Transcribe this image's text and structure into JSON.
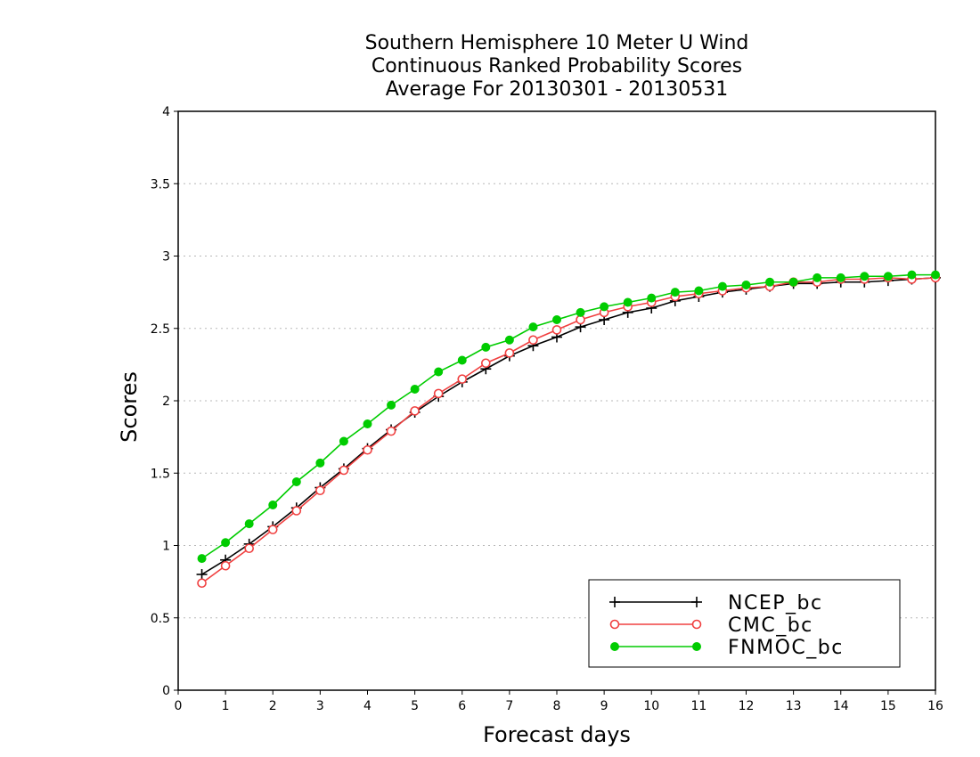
{
  "chart_data": {
    "type": "line",
    "title": [
      "Southern Hemisphere 10 Meter U Wind",
      "Continuous Ranked Probability Scores",
      "Average For 20130301 - 20130531"
    ],
    "xlabel": "Forecast days",
    "ylabel": "Scores",
    "xlim": [
      0,
      16
    ],
    "ylim": [
      0,
      4
    ],
    "xticks": [
      "0",
      "1",
      "2",
      "3",
      "4",
      "5",
      "6",
      "7",
      "8",
      "9",
      "10",
      "11",
      "12",
      "13",
      "14",
      "15",
      "16"
    ],
    "yticks": [
      "0",
      "0.5",
      "1",
      "1.5",
      "2",
      "2.5",
      "3",
      "3.5",
      "4"
    ],
    "grid": "horizontal dotted",
    "legend_position": "bottom-right",
    "x": [
      0.5,
      1,
      1.5,
      2,
      2.5,
      3,
      3.5,
      4,
      4.5,
      5,
      5.5,
      6,
      6.5,
      7,
      7.5,
      8,
      8.5,
      9,
      9.5,
      10,
      10.5,
      11,
      11.5,
      12,
      12.5,
      13,
      13.5,
      14,
      14.5,
      15,
      15.5,
      16
    ],
    "series": [
      {
        "name": "NCEP_bc",
        "color": "#000000",
        "marker": "plus",
        "values": [
          0.8,
          0.9,
          1.01,
          1.13,
          1.26,
          1.4,
          1.53,
          1.67,
          1.8,
          1.92,
          2.03,
          2.13,
          2.22,
          2.31,
          2.38,
          2.44,
          2.51,
          2.56,
          2.61,
          2.64,
          2.69,
          2.72,
          2.75,
          2.77,
          2.79,
          2.81,
          2.81,
          2.82,
          2.82,
          2.83,
          2.84,
          2.85
        ]
      },
      {
        "name": "CMC_bc",
        "color": "#f04040",
        "marker": "open-circle",
        "values": [
          0.74,
          0.86,
          0.98,
          1.11,
          1.24,
          1.38,
          1.52,
          1.66,
          1.79,
          1.93,
          2.05,
          2.15,
          2.26,
          2.33,
          2.42,
          2.49,
          2.56,
          2.61,
          2.65,
          2.68,
          2.72,
          2.74,
          2.76,
          2.78,
          2.79,
          2.82,
          2.82,
          2.84,
          2.84,
          2.85,
          2.84,
          2.85
        ]
      },
      {
        "name": "FNMOC_bc",
        "color": "#00cc00",
        "marker": "filled-circle",
        "values": [
          0.91,
          1.02,
          1.15,
          1.28,
          1.44,
          1.57,
          1.72,
          1.84,
          1.97,
          2.08,
          2.2,
          2.28,
          2.37,
          2.42,
          2.51,
          2.56,
          2.61,
          2.65,
          2.68,
          2.71,
          2.75,
          2.76,
          2.79,
          2.8,
          2.82,
          2.82,
          2.85,
          2.85,
          2.86,
          2.86,
          2.87,
          2.87
        ]
      }
    ]
  }
}
